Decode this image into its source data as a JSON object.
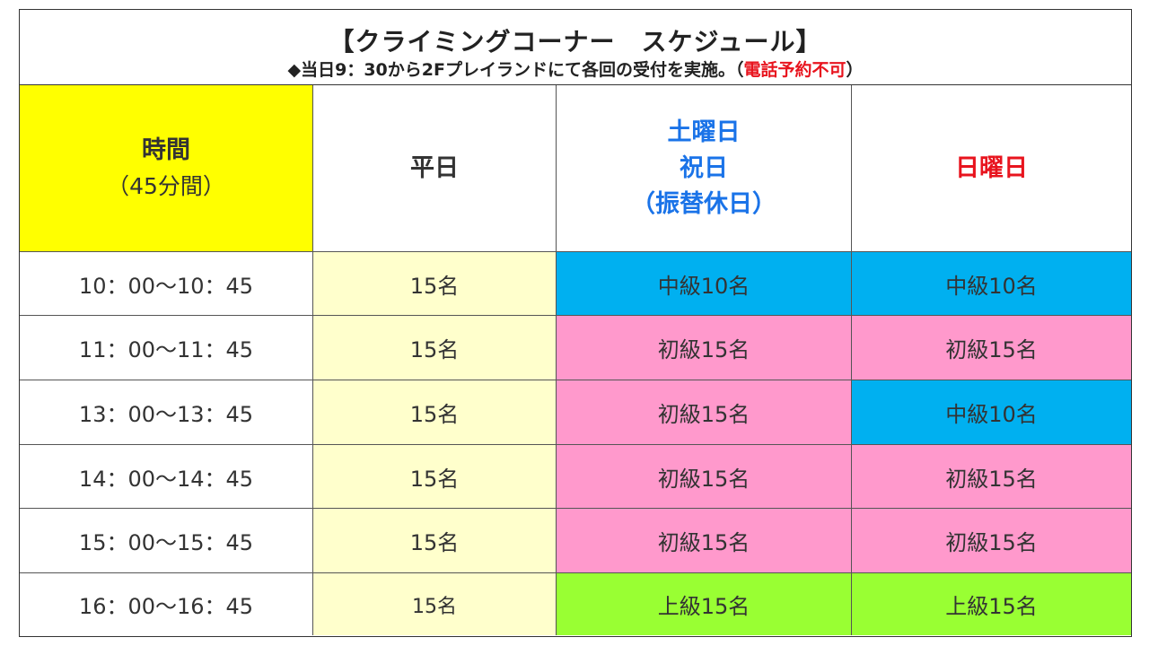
{
  "header": {
    "title": "【クライミングコーナー　スケジュール】",
    "notice_prefix": "◆当日9：30から2Fプレイランドにて各回の受付を実施。（",
    "notice_red": "電話予約不可",
    "notice_suffix": "）"
  },
  "columns": {
    "time": {
      "label": "時間",
      "sub": "（45分間）"
    },
    "weekday": {
      "label": "平日"
    },
    "saturday": {
      "line1": "土曜日",
      "line2": "祝日",
      "line3": "（振替休日）"
    },
    "sunday": {
      "label": "日曜日"
    }
  },
  "colors": {
    "yellow": "#ffff00",
    "cream": "#ffffcc",
    "blue": "#00b0f0",
    "pink": "#ff99cc",
    "green": "#99ff33",
    "blue_text": "#1a73e8",
    "red_text": "#e8141e"
  },
  "rows": [
    {
      "time": "10：00～10：45",
      "weekday": "15名",
      "saturday": "中級10名",
      "sunday": "中級10名"
    },
    {
      "time": "11：00～11：45",
      "weekday": "15名",
      "saturday": "初級15名",
      "sunday": "初級15名"
    },
    {
      "time": "13：00～13：45",
      "weekday": "15名",
      "saturday": "初級15名",
      "sunday": "中級10名"
    },
    {
      "time": "14：00～14：45",
      "weekday": "15名",
      "saturday": "初級15名",
      "sunday": "初級15名"
    },
    {
      "time": "15：00～15：45",
      "weekday": "15名",
      "saturday": "初級15名",
      "sunday": "初級15名"
    },
    {
      "time": "16：00～16：45",
      "weekday": "15名",
      "saturday": "上級15名",
      "sunday": "上級15名"
    }
  ]
}
